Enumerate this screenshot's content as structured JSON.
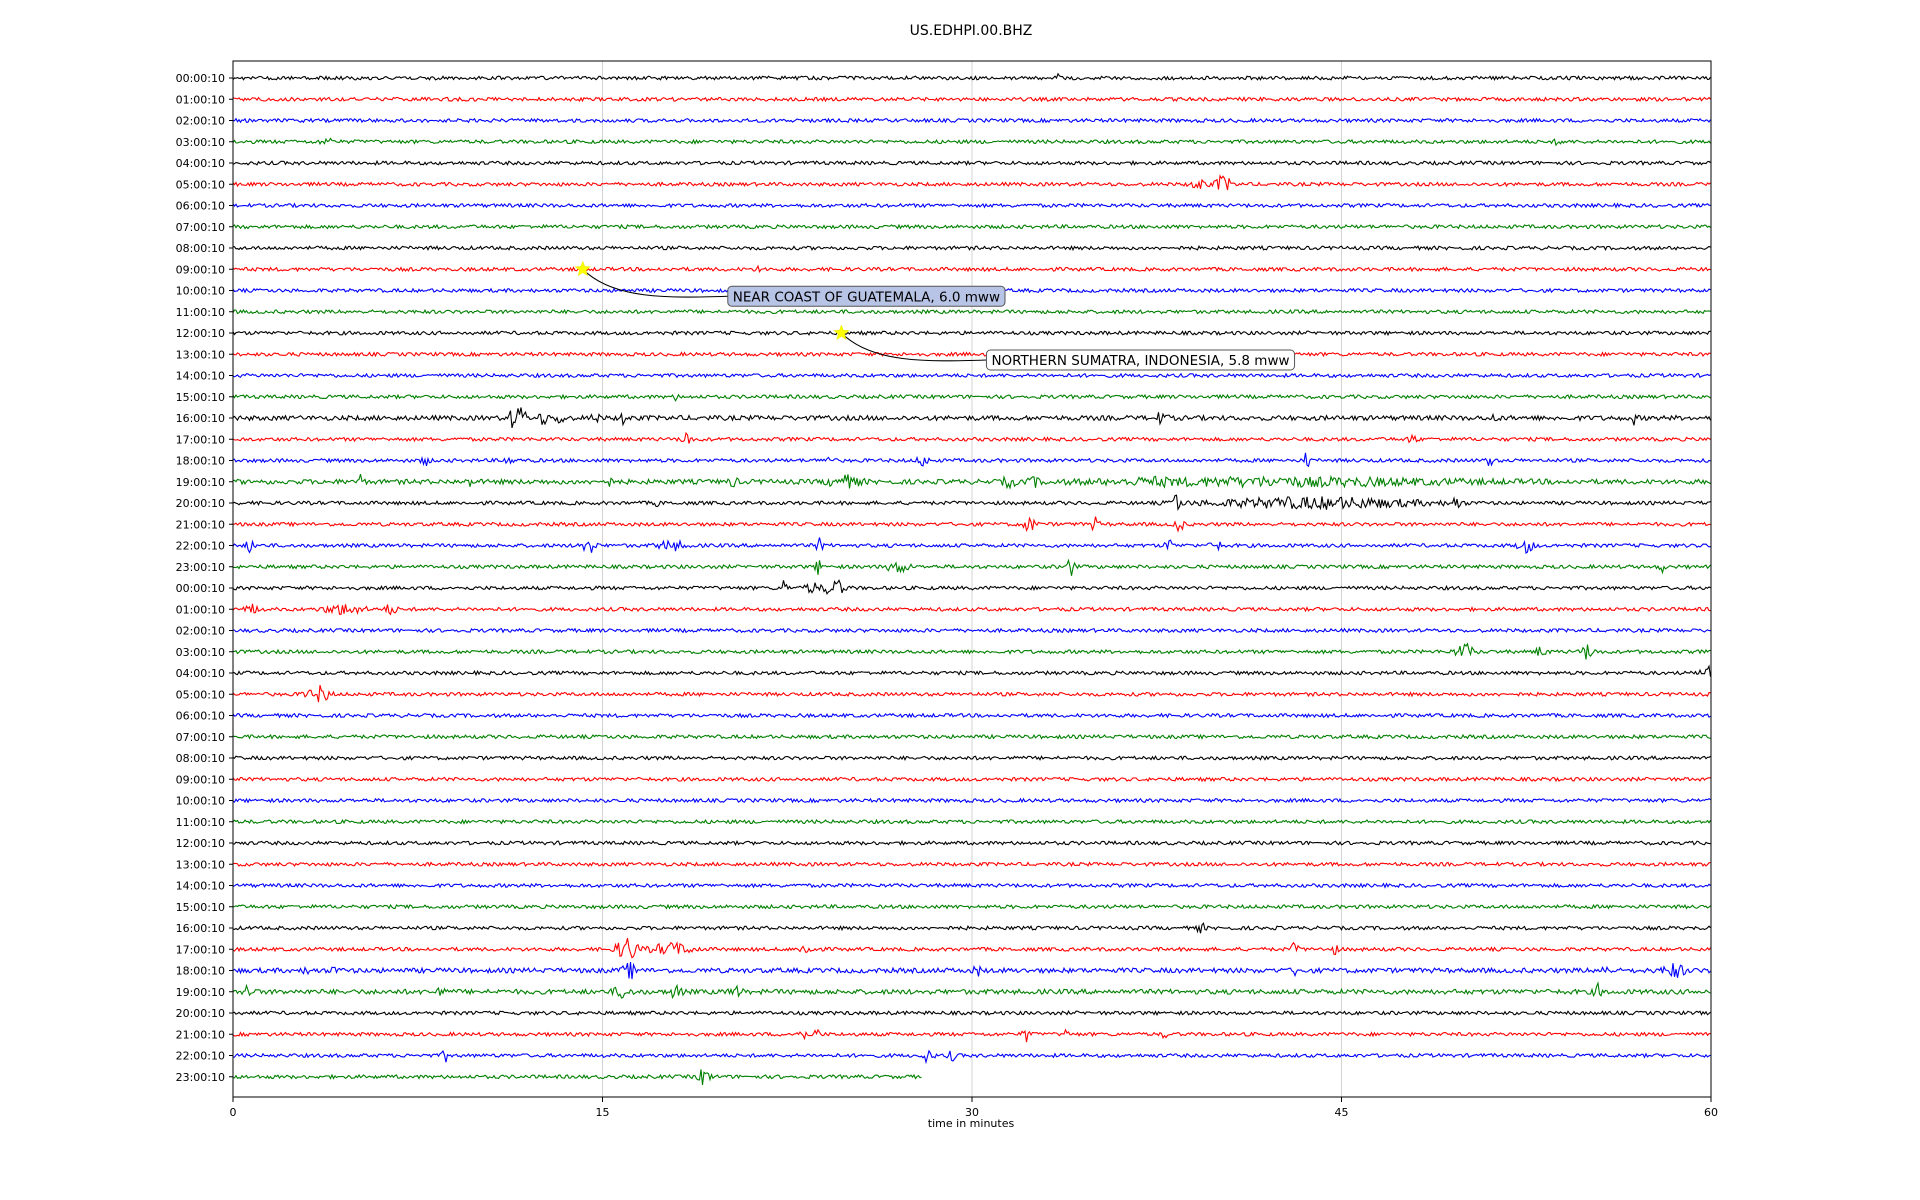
{
  "chart_data": {
    "type": "line",
    "title": "US.EDHPI.00.BHZ",
    "xlabel": "time in minutes",
    "ylabel": "",
    "xlim": [
      0,
      60
    ],
    "xticks": [
      0,
      15,
      30,
      45,
      60
    ],
    "grid": "vertical lines at x ticks",
    "trace_colors": [
      "#000000",
      "#ff0000",
      "#0000ff",
      "#008000"
    ],
    "row_labels": [
      "00:00:10",
      "01:00:10",
      "02:00:10",
      "03:00:10",
      "04:00:10",
      "05:00:10",
      "06:00:10",
      "07:00:10",
      "08:00:10",
      "09:00:10",
      "10:00:10",
      "11:00:10",
      "12:00:10",
      "13:00:10",
      "14:00:10",
      "15:00:10",
      "16:00:10",
      "17:00:10",
      "18:00:10",
      "19:00:10",
      "20:00:10",
      "21:00:10",
      "22:00:10",
      "23:00:10",
      "00:00:10",
      "01:00:10",
      "02:00:10",
      "03:00:10",
      "04:00:10",
      "05:00:10",
      "06:00:10",
      "07:00:10",
      "08:00:10",
      "09:00:10",
      "10:00:10",
      "11:00:10",
      "12:00:10",
      "13:00:10",
      "14:00:10",
      "15:00:10",
      "16:00:10",
      "17:00:10",
      "18:00:10",
      "19:00:10",
      "20:00:10",
      "21:00:10",
      "22:00:10",
      "23:00:10"
    ],
    "last_row_end_minute": 28,
    "bursts": [
      {
        "row": 0,
        "t": 33.5,
        "amp": 0.45,
        "dur": 0.1
      },
      {
        "row": 3,
        "t": 3.8,
        "amp": 0.3,
        "dur": 0.5
      },
      {
        "row": 3,
        "t": 53.8,
        "amp": 0.3,
        "dur": 0.3
      },
      {
        "row": 5,
        "t": 39.2,
        "amp": 0.55,
        "dur": 0.6
      },
      {
        "row": 5,
        "t": 40.2,
        "amp": 0.9,
        "dur": 0.6
      },
      {
        "row": 9,
        "t": 21.3,
        "amp": 0.3,
        "dur": 0.2
      },
      {
        "row": 15,
        "t": 18.0,
        "amp": 0.3,
        "dur": 0.2
      },
      {
        "row": 16,
        "t": 11.4,
        "amp": 1.4,
        "dur": 0.3
      },
      {
        "row": 16,
        "t": 11.7,
        "amp": 1.8,
        "dur": 0.3
      },
      {
        "row": 16,
        "t": 12.6,
        "amp": 0.6,
        "dur": 0.4
      },
      {
        "row": 16,
        "t": 13.3,
        "amp": 0.7,
        "dur": 0.3
      },
      {
        "row": 16,
        "t": 14.7,
        "amp": 0.5,
        "dur": 0.3
      },
      {
        "row": 16,
        "t": 15.8,
        "amp": 0.8,
        "dur": 0.2
      },
      {
        "row": 16,
        "t": 37.7,
        "amp": 0.6,
        "dur": 0.4
      },
      {
        "row": 16,
        "t": 51.2,
        "amp": 0.4,
        "dur": 0.2
      },
      {
        "row": 16,
        "t": 56.9,
        "amp": 0.6,
        "dur": 0.2
      },
      {
        "row": 17,
        "t": 18.4,
        "amp": 1.1,
        "dur": 0.3
      },
      {
        "row": 17,
        "t": 47.9,
        "amp": 0.6,
        "dur": 0.3
      },
      {
        "row": 18,
        "t": 7.8,
        "amp": 0.5,
        "dur": 0.3
      },
      {
        "row": 18,
        "t": 11.2,
        "amp": 0.5,
        "dur": 0.3
      },
      {
        "row": 18,
        "t": 24.1,
        "amp": 0.5,
        "dur": 0.3
      },
      {
        "row": 18,
        "t": 28.0,
        "amp": 0.6,
        "dur": 0.4
      },
      {
        "row": 18,
        "t": 43.6,
        "amp": 1.1,
        "dur": 0.2
      },
      {
        "row": 18,
        "t": 51.0,
        "amp": 0.8,
        "dur": 0.2
      },
      {
        "row": 19,
        "t": 5.2,
        "amp": 0.8,
        "dur": 0.2
      },
      {
        "row": 19,
        "t": 9.6,
        "amp": 0.5,
        "dur": 0.2
      },
      {
        "row": 19,
        "t": 15.2,
        "amp": 0.5,
        "dur": 0.3
      },
      {
        "row": 19,
        "t": 20.3,
        "amp": 0.5,
        "dur": 0.3
      },
      {
        "row": 19,
        "t": 24.8,
        "amp": 0.6,
        "dur": 1.2
      },
      {
        "row": 19,
        "t": 31.5,
        "amp": 0.5,
        "dur": 0.5
      },
      {
        "row": 19,
        "t": 32.5,
        "amp": 0.5,
        "dur": 0.4
      },
      {
        "row": 19,
        "t": 37.5,
        "amp": 0.35,
        "dur": 3.0
      },
      {
        "row": 19,
        "t": 42.5,
        "amp": 0.35,
        "dur": 14.0
      },
      {
        "row": 19,
        "t": 45.9,
        "amp": 0.5,
        "dur": 0.3
      },
      {
        "row": 20,
        "t": 17.2,
        "amp": 0.3,
        "dur": 0.2
      },
      {
        "row": 20,
        "t": 38.3,
        "amp": 1.3,
        "dur": 0.3
      },
      {
        "row": 20,
        "t": 44.0,
        "amp": 0.55,
        "dur": 8.0
      },
      {
        "row": 20,
        "t": 49.6,
        "amp": 0.6,
        "dur": 0.5
      },
      {
        "row": 21,
        "t": 32.3,
        "amp": 0.8,
        "dur": 0.5
      },
      {
        "row": 21,
        "t": 35.0,
        "amp": 0.7,
        "dur": 0.3
      },
      {
        "row": 21,
        "t": 38.4,
        "amp": 1.1,
        "dur": 0.3
      },
      {
        "row": 22,
        "t": 0.7,
        "amp": 0.7,
        "dur": 0.3
      },
      {
        "row": 22,
        "t": 14.4,
        "amp": 0.8,
        "dur": 0.6
      },
      {
        "row": 22,
        "t": 17.8,
        "amp": 0.5,
        "dur": 1.0
      },
      {
        "row": 22,
        "t": 23.8,
        "amp": 0.7,
        "dur": 0.3
      },
      {
        "row": 22,
        "t": 38.0,
        "amp": 0.7,
        "dur": 0.3
      },
      {
        "row": 22,
        "t": 39.9,
        "amp": 0.6,
        "dur": 0.4
      },
      {
        "row": 22,
        "t": 52.5,
        "amp": 0.7,
        "dur": 0.6
      },
      {
        "row": 23,
        "t": 23.8,
        "amp": 0.8,
        "dur": 0.3
      },
      {
        "row": 23,
        "t": 27.0,
        "amp": 0.6,
        "dur": 0.8
      },
      {
        "row": 23,
        "t": 34.0,
        "amp": 1.0,
        "dur": 0.3
      },
      {
        "row": 23,
        "t": 58.0,
        "amp": 0.6,
        "dur": 0.2
      },
      {
        "row": 24,
        "t": 22.4,
        "amp": 1.1,
        "dur": 0.2
      },
      {
        "row": 24,
        "t": 23.5,
        "amp": 0.6,
        "dur": 0.5
      },
      {
        "row": 24,
        "t": 24.4,
        "amp": 0.9,
        "dur": 0.8
      },
      {
        "row": 25,
        "t": 0.8,
        "amp": 0.5,
        "dur": 0.5
      },
      {
        "row": 25,
        "t": 4.5,
        "amp": 0.5,
        "dur": 1.5
      },
      {
        "row": 25,
        "t": 6.4,
        "amp": 0.6,
        "dur": 0.4
      },
      {
        "row": 27,
        "t": 50.0,
        "amp": 0.8,
        "dur": 0.7
      },
      {
        "row": 27,
        "t": 53.1,
        "amp": 0.5,
        "dur": 0.4
      },
      {
        "row": 27,
        "t": 55.0,
        "amp": 0.8,
        "dur": 0.5
      },
      {
        "row": 28,
        "t": 59.8,
        "amp": 0.9,
        "dur": 0.4
      },
      {
        "row": 29,
        "t": 3.0,
        "amp": 0.5,
        "dur": 0.4
      },
      {
        "row": 29,
        "t": 3.6,
        "amp": 0.9,
        "dur": 0.6
      },
      {
        "row": 40,
        "t": 39.3,
        "amp": 0.5,
        "dur": 0.3
      },
      {
        "row": 41,
        "t": 16.0,
        "amp": 1.3,
        "dur": 0.8
      },
      {
        "row": 41,
        "t": 17.8,
        "amp": 0.6,
        "dur": 1.6
      },
      {
        "row": 41,
        "t": 23.3,
        "amp": 0.6,
        "dur": 0.5
      },
      {
        "row": 41,
        "t": 43.1,
        "amp": 0.6,
        "dur": 0.3
      },
      {
        "row": 41,
        "t": 44.7,
        "amp": 0.5,
        "dur": 0.3
      },
      {
        "row": 42,
        "t": 3.0,
        "amp": 0.6,
        "dur": 0.2
      },
      {
        "row": 42,
        "t": 4.1,
        "amp": 0.5,
        "dur": 0.2
      },
      {
        "row": 42,
        "t": 16.1,
        "amp": 0.8,
        "dur": 0.5
      },
      {
        "row": 42,
        "t": 30.2,
        "amp": 0.5,
        "dur": 0.3
      },
      {
        "row": 42,
        "t": 43.2,
        "amp": 0.6,
        "dur": 0.3
      },
      {
        "row": 42,
        "t": 55.7,
        "amp": 0.6,
        "dur": 0.3
      },
      {
        "row": 42,
        "t": 58.5,
        "amp": 0.7,
        "dur": 0.8
      },
      {
        "row": 43,
        "t": 0.6,
        "amp": 0.8,
        "dur": 0.3
      },
      {
        "row": 43,
        "t": 8.4,
        "amp": 0.5,
        "dur": 0.3
      },
      {
        "row": 43,
        "t": 15.8,
        "amp": 0.6,
        "dur": 0.6
      },
      {
        "row": 43,
        "t": 18.0,
        "amp": 0.8,
        "dur": 0.4
      },
      {
        "row": 43,
        "t": 20.4,
        "amp": 0.6,
        "dur": 0.4
      },
      {
        "row": 43,
        "t": 55.4,
        "amp": 0.7,
        "dur": 0.3
      },
      {
        "row": 45,
        "t": 23.1,
        "amp": 0.9,
        "dur": 0.3
      },
      {
        "row": 45,
        "t": 23.7,
        "amp": 0.7,
        "dur": 0.2
      },
      {
        "row": 45,
        "t": 32.2,
        "amp": 0.8,
        "dur": 0.3
      },
      {
        "row": 45,
        "t": 33.8,
        "amp": 0.5,
        "dur": 0.2
      },
      {
        "row": 45,
        "t": 37.8,
        "amp": 0.4,
        "dur": 0.2
      },
      {
        "row": 46,
        "t": 8.6,
        "amp": 0.7,
        "dur": 0.2
      },
      {
        "row": 46,
        "t": 28.2,
        "amp": 0.6,
        "dur": 0.4
      },
      {
        "row": 46,
        "t": 29.2,
        "amp": 0.5,
        "dur": 0.3
      },
      {
        "row": 47,
        "t": 19.1,
        "amp": 0.8,
        "dur": 0.5
      }
    ],
    "noisy_rows": [
      16,
      19,
      42,
      43
    ],
    "annotations": [
      {
        "text": "NEAR COAST OF GUATEMALA, 6.0 mww",
        "marker_row": 9,
        "marker_t": 14.2,
        "box_fill": "#b8c4e6"
      },
      {
        "text": "NORTHERN SUMATRA, INDONESIA, 5.8 mww",
        "marker_row": 12,
        "marker_t": 24.7,
        "box_fill": "#ffffff"
      }
    ]
  }
}
